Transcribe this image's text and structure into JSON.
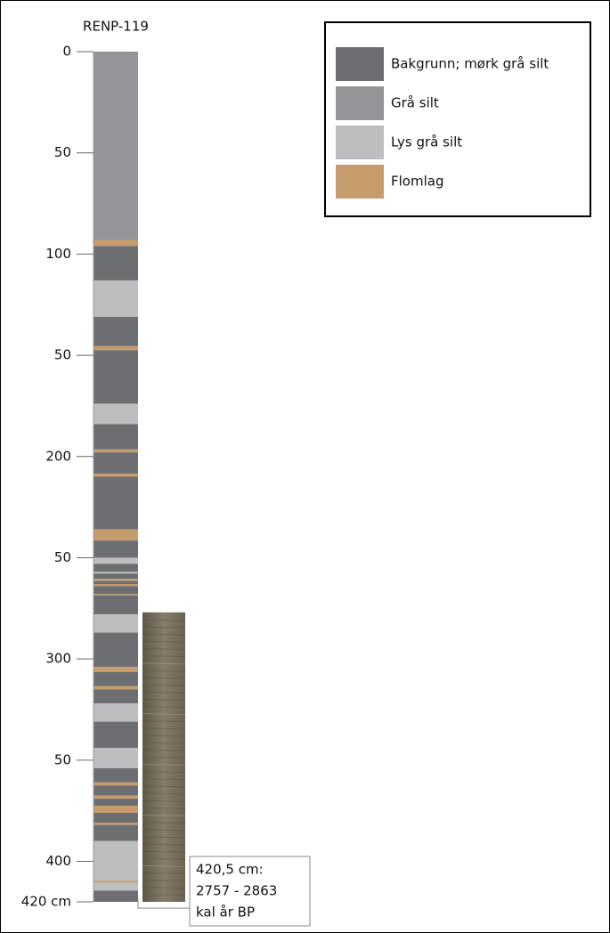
{
  "title": "RENP-119",
  "axis": {
    "range": [
      0,
      420
    ],
    "ticks": [
      0,
      50,
      100,
      {
        "value": 150,
        "label": "50"
      },
      200,
      {
        "value": 250,
        "label": "50"
      },
      300,
      {
        "value": 350,
        "label": "50"
      },
      400,
      {
        "value": 420,
        "label": "420 cm"
      }
    ]
  },
  "legend": [
    {
      "label": "Bakgrunn; mørk grå silt",
      "color": "#6d6e71"
    },
    {
      "label": "Grå silt",
      "color": "#939598"
    },
    {
      "label": "Lys grå silt",
      "color": "#bcbec0"
    },
    {
      "label": "Flomlag",
      "color": "#c69c6d"
    }
  ],
  "layers": [
    [
      0,
      93,
      1
    ],
    [
      93,
      96,
      3
    ],
    [
      96,
      113,
      0
    ],
    [
      113,
      131,
      2
    ],
    [
      131,
      145.5,
      0
    ],
    [
      145.5,
      147.5,
      3
    ],
    [
      147.5,
      174,
      0
    ],
    [
      174,
      184,
      2
    ],
    [
      184,
      196.5,
      0
    ],
    [
      196.5,
      198,
      3
    ],
    [
      198,
      208.5,
      0
    ],
    [
      208.5,
      210,
      3
    ],
    [
      210,
      236,
      0
    ],
    [
      236,
      241.5,
      3
    ],
    [
      241.5,
      250,
      0
    ],
    [
      250,
      253,
      2
    ],
    [
      253,
      257,
      0
    ],
    [
      257,
      257.8,
      2
    ],
    [
      257.8,
      260.5,
      0
    ],
    [
      260.5,
      261.5,
      3
    ],
    [
      261.5,
      263,
      0
    ],
    [
      263,
      264,
      3
    ],
    [
      264,
      268,
      0
    ],
    [
      268,
      268.6,
      3
    ],
    [
      268.6,
      278,
      0
    ],
    [
      278,
      287,
      2
    ],
    [
      287,
      304,
      0
    ],
    [
      304,
      306.5,
      3
    ],
    [
      306.5,
      313.5,
      0
    ],
    [
      313.5,
      315,
      3
    ],
    [
      315,
      322,
      0
    ],
    [
      322,
      331,
      2
    ],
    [
      331,
      344,
      0
    ],
    [
      344,
      354,
      2
    ],
    [
      354,
      361,
      0
    ],
    [
      361,
      362.5,
      3
    ],
    [
      362.5,
      367.5,
      0
    ],
    [
      367.5,
      369,
      3
    ],
    [
      369,
      372.5,
      0
    ],
    [
      372.5,
      376,
      3
    ],
    [
      376,
      381,
      0
    ],
    [
      381,
      382,
      3
    ],
    [
      382,
      390,
      0
    ],
    [
      390,
      409.5,
      2
    ],
    [
      409.5,
      410.5,
      3
    ],
    [
      410.5,
      414.5,
      2
    ],
    [
      414.5,
      420,
      0
    ]
  ],
  "core_photo": {
    "top": 277,
    "bottom": 420
  },
  "annotation": {
    "depth": 420.5,
    "lines": [
      "420,5 cm:",
      "2757 - 2863",
      "kal år BP"
    ]
  }
}
